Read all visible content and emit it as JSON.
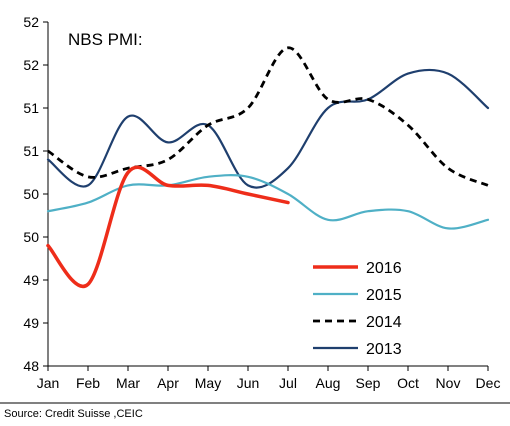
{
  "chart_data": {
    "type": "line",
    "title": "NBS PMI:",
    "xlabel": "",
    "ylabel": "",
    "categories": [
      "Jan",
      "Feb",
      "Mar",
      "Apr",
      "May",
      "Jun",
      "Jul",
      "Aug",
      "Sep",
      "Oct",
      "Nov",
      "Dec"
    ],
    "y_tick_labels": [
      "48",
      "49",
      "49",
      "50",
      "50",
      "51",
      "51",
      "52",
      "52"
    ],
    "ylim": [
      48,
      52
    ],
    "grid": false,
    "legend_position": "bottom-right",
    "series": [
      {
        "name": "2016",
        "color": "#ee2d1a",
        "style": "solid",
        "values": [
          49.4,
          48.95,
          50.25,
          50.1,
          50.1,
          50.0,
          49.9,
          null,
          null,
          null,
          null,
          null
        ]
      },
      {
        "name": "2015",
        "color": "#4fb0c6",
        "style": "solid",
        "values": [
          49.8,
          49.9,
          50.1,
          50.1,
          50.2,
          50.2,
          50.0,
          49.7,
          49.8,
          49.8,
          49.6,
          49.7
        ]
      },
      {
        "name": "2014",
        "color": "#000000",
        "style": "dashed",
        "values": [
          50.5,
          50.2,
          50.3,
          50.4,
          50.8,
          51.0,
          51.7,
          51.1,
          51.1,
          50.8,
          50.3,
          50.1
        ]
      },
      {
        "name": "2013",
        "color": "#1f3f6e",
        "style": "solid",
        "values": [
          50.4,
          50.1,
          50.9,
          50.6,
          50.8,
          50.1,
          50.3,
          51.0,
          51.1,
          51.4,
          51.4,
          51.0
        ]
      }
    ]
  },
  "source": "Source: Credit Suisse ,CEIC"
}
